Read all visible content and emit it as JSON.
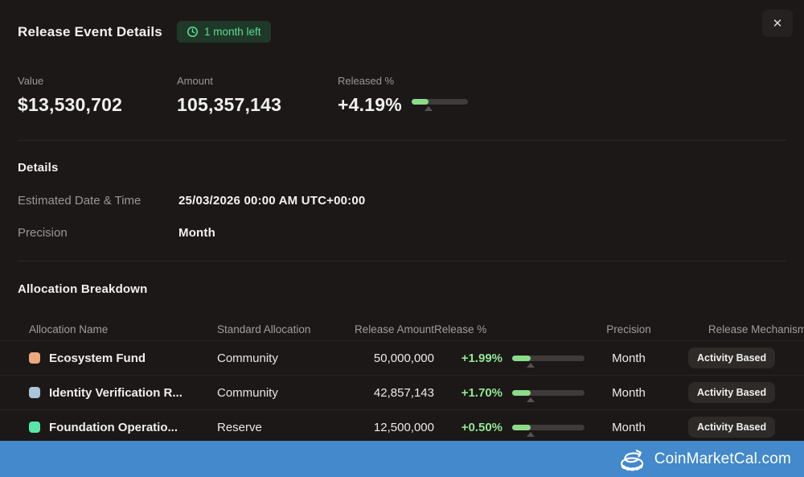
{
  "header": {
    "title": "Release Event Details",
    "time_left_badge": "1 month left",
    "close_icon": "✕"
  },
  "stats": {
    "value": {
      "label": "Value",
      "value": "$13,530,702"
    },
    "amount": {
      "label": "Amount",
      "value": "105,357,143"
    },
    "released": {
      "label": "Released %",
      "value": "+4.19%",
      "progress_pct": 30
    }
  },
  "details": {
    "heading": "Details",
    "rows": [
      {
        "label": "Estimated Date & Time",
        "value": "25/03/2026 00:00 AM UTC+00:00"
      },
      {
        "label": "Precision",
        "value": "Month"
      }
    ]
  },
  "allocation": {
    "heading": "Allocation Breakdown",
    "columns": [
      "Allocation Name",
      "Standard Allocation",
      "Release Amount",
      "Release %",
      "Precision",
      "Release Mechanism"
    ],
    "rows": [
      {
        "name": "Ecosystem Fund",
        "color": "#eda87f",
        "standard_allocation": "Community",
        "release_amount": "50,000,000",
        "release_pct": "+1.99%",
        "progress_pct": 26,
        "precision": "Month",
        "mechanism": "Activity Based"
      },
      {
        "name": "Identity Verification R...",
        "color": "#abc4d8",
        "standard_allocation": "Community",
        "release_amount": "42,857,143",
        "release_pct": "+1.70%",
        "progress_pct": 26,
        "precision": "Month",
        "mechanism": "Activity Based"
      },
      {
        "name": "Foundation Operatio...",
        "color": "#58e7a6",
        "standard_allocation": "Reserve",
        "release_amount": "12,500,000",
        "release_pct": "+0.50%",
        "progress_pct": 26,
        "precision": "Month",
        "mechanism": "Activity Based"
      }
    ]
  },
  "footer": {
    "brand": "CoinMarketCal.com"
  },
  "colors": {
    "background": "#1b1817",
    "accent_green_text": "#92e892",
    "progress_fill": "#8adc88",
    "progress_track": "#3e3b3a",
    "badge_bg": "#203829",
    "badge_text": "#5edc92",
    "footer_blue": "#4389cb"
  }
}
